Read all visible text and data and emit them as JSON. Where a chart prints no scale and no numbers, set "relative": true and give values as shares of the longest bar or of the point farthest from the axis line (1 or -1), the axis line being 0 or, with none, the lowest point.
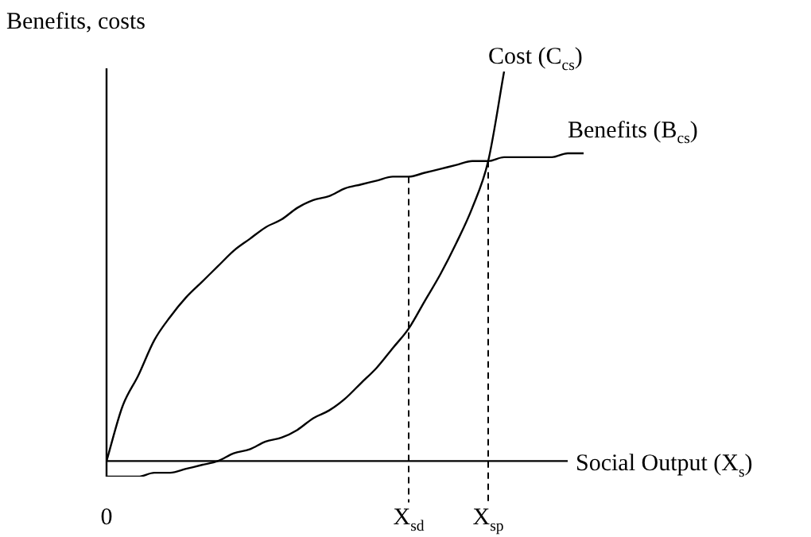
{
  "chart_data": {
    "type": "line",
    "relative": true,
    "ylabel": "Benefits, costs",
    "xlabel": "Social Output (X$_{s}$)",
    "categories": [
      "0",
      null,
      null,
      null,
      null,
      null,
      null,
      null,
      null,
      null,
      null,
      null,
      null,
      null,
      null,
      null,
      null,
      null,
      null,
      "X$_{sd}$",
      null,
      null,
      null,
      null,
      "X$_{sp}$",
      null,
      null,
      null,
      null,
      null,
      null
    ],
    "series": [
      {
        "name": "Cost (C$_{cs}$)",
        "color": "#000000",
        "values": [
          -0.04,
          -0.04,
          -0.04,
          -0.03,
          -0.03,
          -0.02,
          -0.01,
          0,
          0.02,
          0.03,
          0.05,
          0.06,
          0.08,
          0.11,
          0.13,
          0.16,
          0.2,
          0.24,
          0.29,
          0.34,
          0.41,
          0.48,
          0.56,
          0.65,
          0.77,
          1,
          null,
          null,
          null,
          null,
          null
        ]
      },
      {
        "name": "Benefits (B$_{cs}$)",
        "color": "#000000",
        "values": [
          0,
          0.14,
          0.22,
          0.31,
          0.37,
          0.42,
          0.46,
          0.5,
          0.54,
          0.57,
          0.6,
          0.62,
          0.65,
          0.67,
          0.68,
          0.7,
          0.71,
          0.72,
          0.73,
          0.73,
          0.74,
          0.75,
          0.76,
          0.77,
          0.77,
          0.78,
          0.78,
          0.78,
          0.78,
          0.79,
          0.79
        ]
      }
    ],
    "ref_lines": [
      {
        "axis": "x",
        "value": "X$_{sd}$",
        "line_style": "dashed"
      },
      {
        "axis": "x",
        "value": "X$_{sp}$",
        "line_style": "dashed"
      }
    ],
    "marker": "none"
  }
}
